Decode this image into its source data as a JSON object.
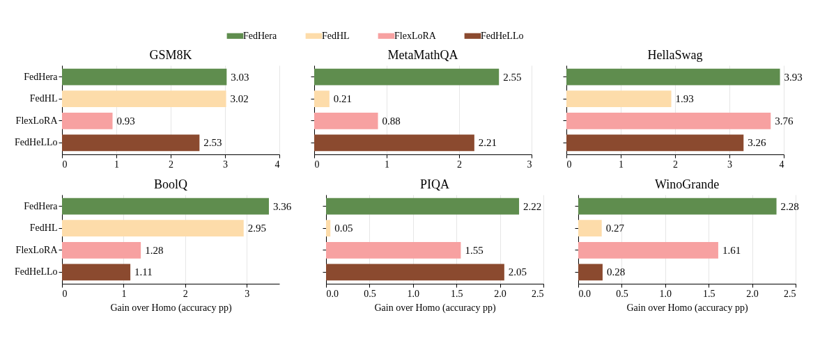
{
  "chart_data": [
    {
      "type": "bar",
      "orientation": "horizontal",
      "title": "GSM8K",
      "categories": [
        null
      ],
      "series": [
        {
          "name": "FedHera",
          "color": "#5f8d4e",
          "values": [
            3.03
          ]
        },
        {
          "name": "FedHL",
          "color": "#fddcaa",
          "values": [
            3.02
          ]
        },
        {
          "name": "FlexLoRA",
          "color": "#f7a1a1",
          "values": [
            0.93
          ]
        },
        {
          "name": "FedHeLLo",
          "color": "#8b4a2f",
          "values": [
            2.53
          ]
        }
      ],
      "xlim": [
        0,
        4
      ],
      "xticks": [
        0,
        1,
        2,
        3,
        4
      ],
      "grid": "x",
      "data_labels": true,
      "legend": "top"
    },
    {
      "type": "bar",
      "orientation": "horizontal",
      "title": "MetaMathQA",
      "categories": [
        null
      ],
      "series": [
        {
          "color": "#5f8d4e",
          "values": [
            2.55
          ]
        },
        {
          "color": "#fddcaa",
          "values": [
            0.21
          ]
        },
        {
          "color": "#f7a1a1",
          "values": [
            0.88
          ]
        },
        {
          "color": "#8b4a2f",
          "values": [
            2.21
          ]
        }
      ],
      "xlim": [
        0,
        3
      ],
      "xticks": [
        0,
        1,
        2,
        3
      ],
      "grid": "x",
      "data_labels": true,
      "tick_labels": "x"
    },
    {
      "type": "bar",
      "orientation": "horizontal",
      "title": "HellaSwag",
      "categories": [
        null
      ],
      "series": [
        {
          "color": "#5f8d4e",
          "values": [
            3.93
          ]
        },
        {
          "color": "#fddcaa",
          "values": [
            1.93
          ]
        },
        {
          "color": "#f7a1a1",
          "values": [
            3.76
          ]
        },
        {
          "color": "#8b4a2f",
          "values": [
            3.26
          ]
        }
      ],
      "xlim": [
        0,
        4
      ],
      "xticks": [
        0,
        1,
        2,
        3,
        4
      ],
      "grid": "x",
      "data_labels": true,
      "tick_labels": "x"
    },
    {
      "type": "bar",
      "orientation": "horizontal",
      "title": "BoolQ",
      "xlabel": "Gain over Homo (accuracy pp)",
      "categories": [
        null
      ],
      "series": [
        {
          "name": "FedHera",
          "color": "#5f8d4e",
          "values": [
            3.36
          ]
        },
        {
          "name": "FedHL",
          "color": "#fddcaa",
          "values": [
            2.95
          ]
        },
        {
          "name": "FlexLoRA",
          "color": "#f7a1a1",
          "values": [
            1.28
          ]
        },
        {
          "name": "FedHeLLo",
          "color": "#8b4a2f",
          "values": [
            1.11
          ]
        }
      ],
      "xlim": [
        0,
        3.53
      ],
      "xticks": [
        0,
        1,
        2,
        3
      ],
      "grid": "x",
      "data_labels": true
    },
    {
      "type": "bar",
      "orientation": "horizontal",
      "title": "PIQA",
      "xlabel": "Gain over Homo (accuracy pp)",
      "categories": [
        null
      ],
      "series": [
        {
          "color": "#5f8d4e",
          "values": [
            2.22
          ]
        },
        {
          "color": "#fddcaa",
          "values": [
            0.05
          ]
        },
        {
          "color": "#f7a1a1",
          "values": [
            1.55
          ]
        },
        {
          "color": "#8b4a2f",
          "values": [
            2.05
          ]
        }
      ],
      "xlim": [
        0,
        2.5
      ],
      "xticks": [
        {
          "value": 0,
          "label": "0.0"
        },
        0.5,
        {
          "value": 1,
          "label": "1.0"
        },
        1.5,
        {
          "value": 2,
          "label": "2.0"
        },
        2.5
      ],
      "grid": "x",
      "data_labels": true,
      "tick_labels": "x"
    },
    {
      "type": "bar",
      "orientation": "horizontal",
      "title": "WinoGrande",
      "xlabel": "Gain over Homo (accuracy pp)",
      "categories": [
        null
      ],
      "series": [
        {
          "color": "#5f8d4e",
          "values": [
            2.28
          ]
        },
        {
          "color": "#fddcaa",
          "values": [
            0.27
          ]
        },
        {
          "color": "#f7a1a1",
          "values": [
            1.61
          ]
        },
        {
          "color": "#8b4a2f",
          "values": [
            0.28
          ]
        }
      ],
      "xlim": [
        0,
        2.5
      ],
      "xticks": [
        {
          "value": 0,
          "label": "0.0"
        },
        0.5,
        {
          "value": 1,
          "label": "1.0"
        },
        1.5,
        {
          "value": 2,
          "label": "2.0"
        },
        2.5
      ],
      "grid": "x",
      "data_labels": true,
      "tick_labels": "x"
    }
  ]
}
